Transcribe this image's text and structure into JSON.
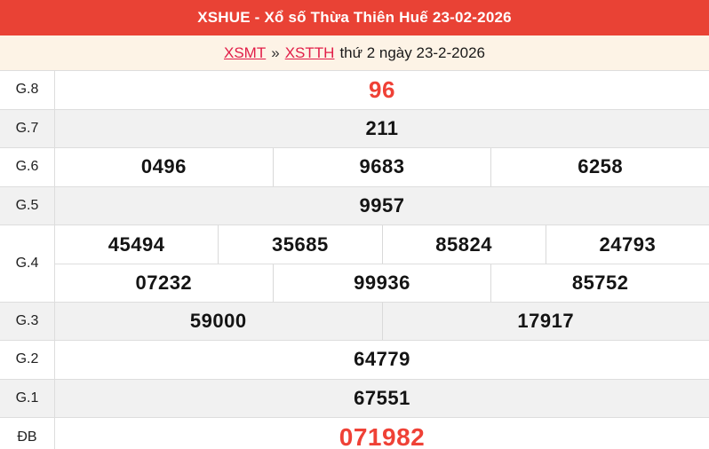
{
  "header": {
    "title": "XSHUE - Xổ số Thừa Thiên Huế 23-02-2026"
  },
  "breadcrumb": {
    "region_link": "XSMT",
    "separator": "»",
    "station_link": "XSTTH",
    "date_text": "thứ 2 ngày 23-2-2026"
  },
  "results": {
    "rows": [
      {
        "label": "G.8",
        "style": "special",
        "lines": [
          [
            "96"
          ]
        ]
      },
      {
        "label": "G.7",
        "style": "",
        "lines": [
          [
            "211"
          ]
        ]
      },
      {
        "label": "G.6",
        "style": "",
        "lines": [
          [
            "0496",
            "9683",
            "6258"
          ]
        ]
      },
      {
        "label": "G.5",
        "style": "",
        "lines": [
          [
            "9957"
          ]
        ]
      },
      {
        "label": "G.4",
        "style": "",
        "lines": [
          [
            "45494",
            "35685",
            "85824",
            "24793"
          ],
          [
            "07232",
            "99936",
            "85752"
          ]
        ]
      },
      {
        "label": "G.3",
        "style": "",
        "lines": [
          [
            "59000",
            "17917"
          ]
        ]
      },
      {
        "label": "G.2",
        "style": "",
        "lines": [
          [
            "64779"
          ]
        ]
      },
      {
        "label": "G.1",
        "style": "",
        "lines": [
          [
            "67551"
          ]
        ]
      },
      {
        "label": "ĐB",
        "style": "jackpot",
        "lines": [
          [
            "071982"
          ]
        ]
      }
    ]
  },
  "colors": {
    "header_red": "#e94235",
    "subtitle_bg": "#fdf3e6",
    "link_red": "#e11d48",
    "number_red": "#ef4136",
    "row_alt_gray": "#f1f1f1",
    "border": "#dddddd"
  }
}
